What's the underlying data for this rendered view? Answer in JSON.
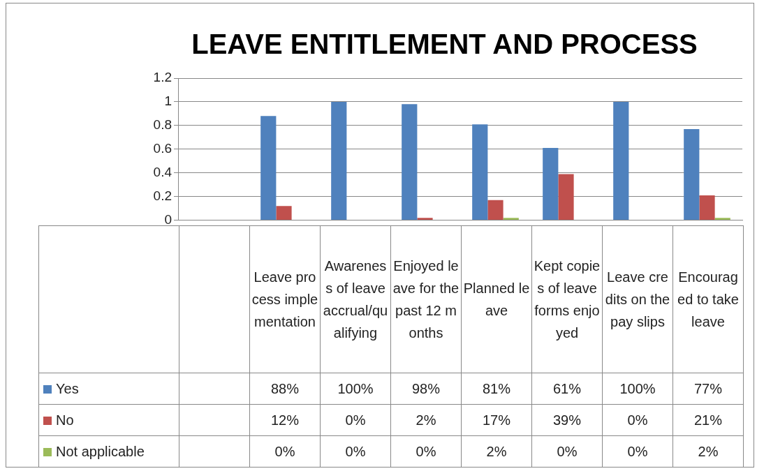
{
  "chart_data": {
    "type": "bar",
    "title": "LEAVE ENTITLEMENT AND PROCESS",
    "categories": [
      null,
      "Leave process implementation",
      "Awareness of leave accrual/qualifying",
      "Enjoyed leave for the past 12 months",
      "Planned leave",
      "Kept copies of leave forms enjoyed",
      "Leave credits on the pay slips",
      "Encouraged to take leave"
    ],
    "series": [
      {
        "name": "Yes",
        "color": "#4f81bd",
        "values": [
          null,
          0.88,
          1.0,
          0.98,
          0.81,
          0.61,
          1.0,
          0.77
        ],
        "value_labels": [
          null,
          "88%",
          "100%",
          "98%",
          "81%",
          "61%",
          "100%",
          "77%"
        ]
      },
      {
        "name": "No",
        "color": "#c0504d",
        "values": [
          null,
          0.12,
          0,
          0.02,
          0.17,
          0.39,
          0,
          0.21
        ],
        "value_labels": [
          null,
          "12%",
          "0%",
          "2%",
          "17%",
          "39%",
          "0%",
          "21%"
        ]
      },
      {
        "name": "Not applicable",
        "color": "#9bbb59",
        "values": [
          null,
          0,
          0,
          0,
          0.02,
          0,
          0,
          0.02
        ],
        "value_labels": [
          null,
          "0%",
          "0%",
          "0%",
          "2%",
          "0%",
          "0%",
          "2%"
        ]
      }
    ],
    "ylim": [
      0,
      1.2
    ],
    "yticks": [
      0,
      0.2,
      0.4,
      0.6,
      0.8,
      1,
      1.2
    ],
    "grid": "y",
    "legend": "bottom left"
  }
}
